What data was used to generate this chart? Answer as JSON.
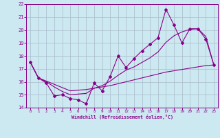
{
  "xlabel": "Windchill (Refroidissement éolien,°C)",
  "x": [
    0,
    1,
    2,
    3,
    4,
    5,
    6,
    7,
    8,
    9,
    10,
    11,
    12,
    13,
    14,
    15,
    16,
    17,
    18,
    19,
    20,
    21,
    22,
    23
  ],
  "y_main": [
    17.5,
    16.3,
    15.9,
    14.9,
    15.0,
    14.7,
    14.6,
    14.3,
    15.9,
    15.3,
    16.4,
    18.0,
    17.1,
    17.8,
    18.4,
    18.9,
    19.4,
    21.6,
    20.4,
    19.0,
    20.1,
    20.1,
    19.3,
    17.3
  ],
  "y_line1": [
    17.5,
    16.3,
    16.05,
    15.8,
    15.55,
    15.3,
    15.35,
    15.4,
    15.5,
    15.6,
    15.7,
    15.85,
    16.0,
    16.15,
    16.3,
    16.45,
    16.6,
    16.75,
    16.85,
    16.95,
    17.05,
    17.15,
    17.25,
    17.3
  ],
  "y_line2": [
    17.5,
    16.3,
    16.0,
    15.6,
    15.25,
    15.0,
    15.05,
    15.1,
    15.5,
    15.7,
    16.05,
    16.5,
    16.9,
    17.15,
    17.5,
    17.85,
    18.3,
    19.05,
    19.55,
    19.85,
    20.05,
    20.1,
    19.5,
    17.3
  ],
  "line_color": "#880088",
  "bg_color": "#cce8f0",
  "grid_color": "#aabbcc",
  "ylim": [
    14,
    22
  ],
  "yticks": [
    14,
    15,
    16,
    17,
    18,
    19,
    20,
    21,
    22
  ],
  "xticks": [
    0,
    1,
    2,
    3,
    4,
    5,
    6,
    7,
    8,
    9,
    10,
    11,
    12,
    13,
    14,
    15,
    16,
    17,
    18,
    19,
    20,
    21,
    22,
    23
  ]
}
